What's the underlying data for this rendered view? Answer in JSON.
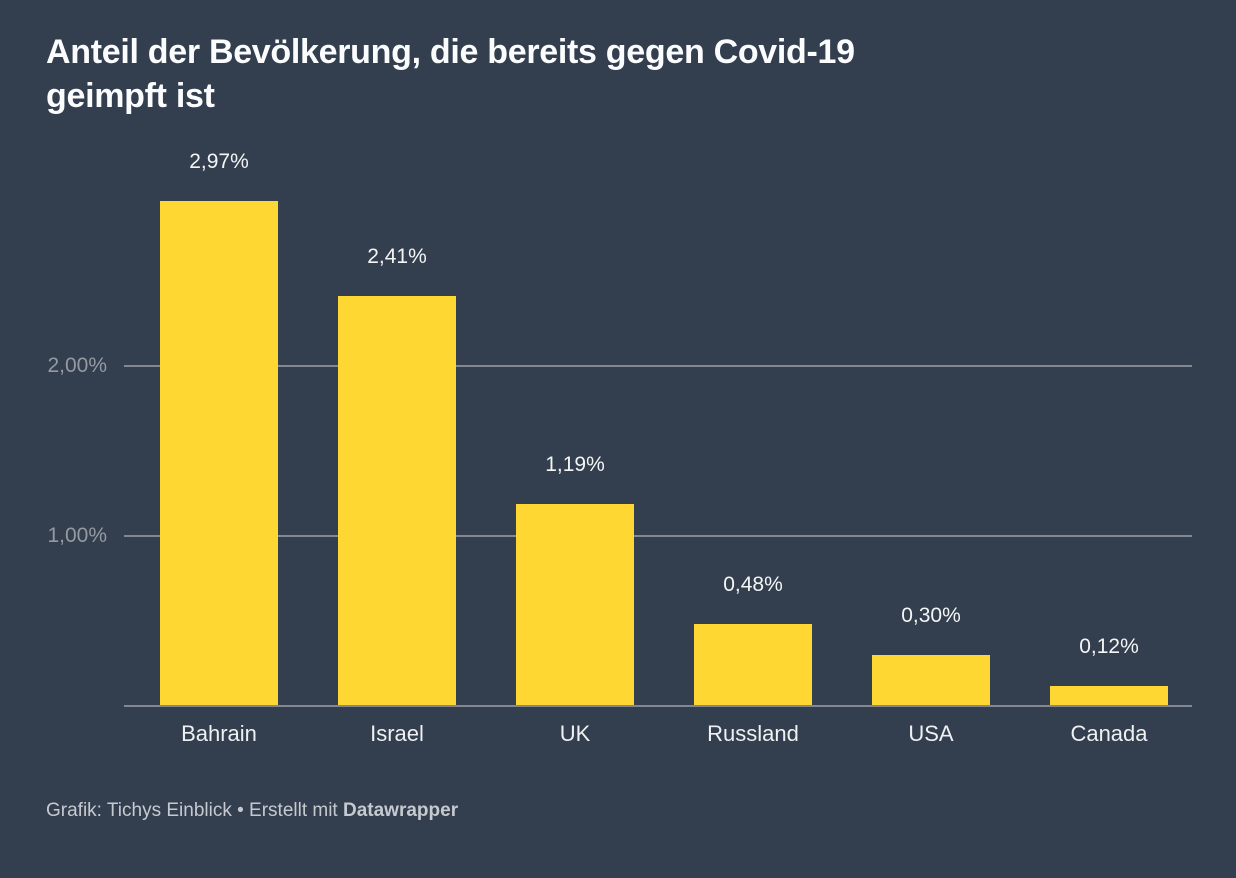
{
  "title": {
    "line1": "Anteil der Bevölkerung, die bereits gegen Covid-19",
    "line2": "geimpft ist"
  },
  "footer": {
    "prefix": "Grafik: Tichys Einblick • Erstellt mit ",
    "brand": "Datawrapper"
  },
  "colors": {
    "background": "#333e4e",
    "bar": "#ffd733",
    "gridline": "#83878f",
    "axis_tick_label": "#959aa2",
    "value_label": "#f4f5f6",
    "category_label": "#eef0f2",
    "title_text": "#fbfcfd",
    "footer_text": "#c6cad0"
  },
  "chart_data": {
    "type": "bar",
    "title": "Anteil der Bevölkerung, die bereits gegen Covid-19 geimpft ist",
    "categories": [
      "Bahrain",
      "Israel",
      "UK",
      "Russland",
      "USA",
      "Canada"
    ],
    "values": [
      2.97,
      2.41,
      1.19,
      0.48,
      0.3,
      0.12
    ],
    "value_labels": [
      "2,97%",
      "2,41%",
      "1,19%",
      "0,48%",
      "0,30%",
      "0,12%"
    ],
    "xlabel": "",
    "ylabel": "",
    "ylim": [
      0,
      3.2
    ],
    "yticks": [
      {
        "value": 1.0,
        "label": "1,00%"
      },
      {
        "value": 2.0,
        "label": "2,00%"
      }
    ],
    "grid": "horizontal-lines-only",
    "legend": "none",
    "bar_color": "#ffd733",
    "source_note": "Grafik: Tichys Einblick • Erstellt mit Datawrapper"
  }
}
